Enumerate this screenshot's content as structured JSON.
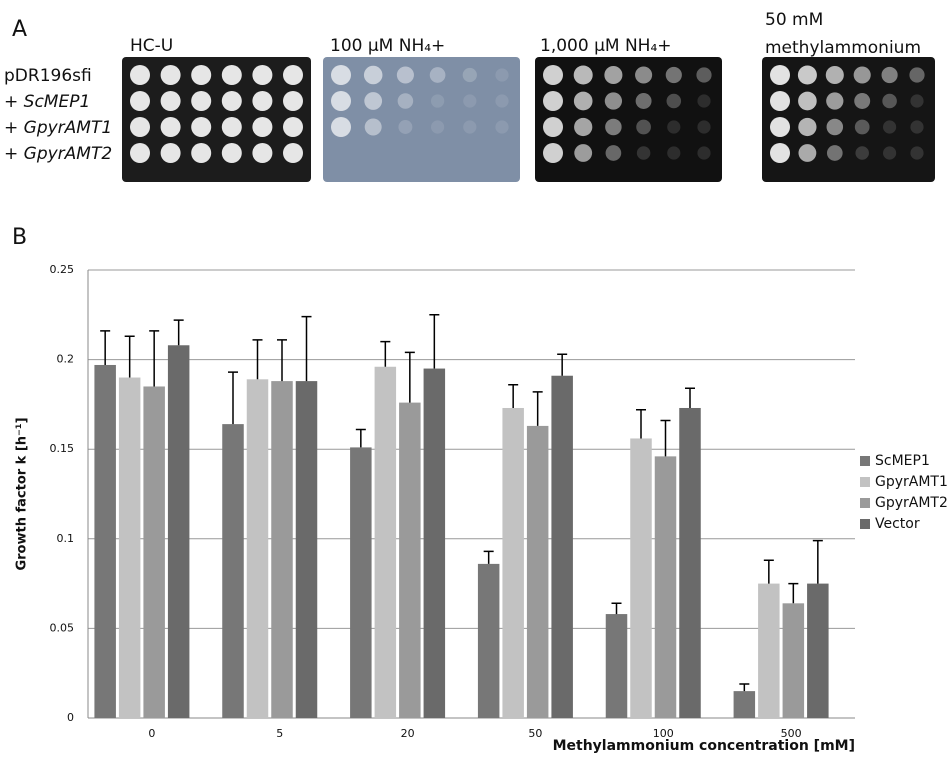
{
  "panel_a": {
    "label": "A",
    "conditions": [
      "HC-U",
      "100 µM NH₄+",
      "1,000 µM NH₄+"
    ],
    "condition_lines": [
      "50 mM",
      "methylammonium"
    ],
    "rows": [
      "pDR196sfi",
      "+ ScMEP1",
      "+ GpyrAMT1",
      "+ GpyrAMT2"
    ]
  },
  "panel_b": {
    "label": "B"
  },
  "chart_data": {
    "type": "bar",
    "ylabel": "Growth factor k [h⁻¹]",
    "xlabel": "Methylammonium concentration [mM]",
    "categories": [
      "0",
      "5",
      "20",
      "50",
      "100",
      "500"
    ],
    "series": [
      {
        "name": "ScMEP1",
        "color": "#777777",
        "values": [
          0.197,
          0.164,
          0.151,
          0.086,
          0.058,
          0.015
        ],
        "errors": [
          0.019,
          0.029,
          0.01,
          0.007,
          0.006,
          0.004
        ]
      },
      {
        "name": "GpyrAMT1",
        "color": "#c2c2c2",
        "values": [
          0.19,
          0.189,
          0.196,
          0.173,
          0.156,
          0.075
        ],
        "errors": [
          0.023,
          0.022,
          0.014,
          0.013,
          0.016,
          0.013
        ]
      },
      {
        "name": "GpyrAMT2",
        "color": "#9a9a9a",
        "values": [
          0.185,
          0.188,
          0.176,
          0.163,
          0.146,
          0.064
        ],
        "errors": [
          0.031,
          0.023,
          0.028,
          0.019,
          0.02,
          0.011
        ]
      },
      {
        "name": "Vector",
        "color": "#6a6a6a",
        "values": [
          0.208,
          0.188,
          0.195,
          0.191,
          0.173,
          0.075
        ],
        "errors": [
          0.014,
          0.036,
          0.03,
          0.012,
          0.011,
          0.024
        ]
      }
    ],
    "ylim": [
      0,
      0.25
    ],
    "yticks": [
      0,
      0.05,
      0.1,
      0.15,
      0.2,
      0.25
    ],
    "grid": true,
    "legend": "right"
  }
}
